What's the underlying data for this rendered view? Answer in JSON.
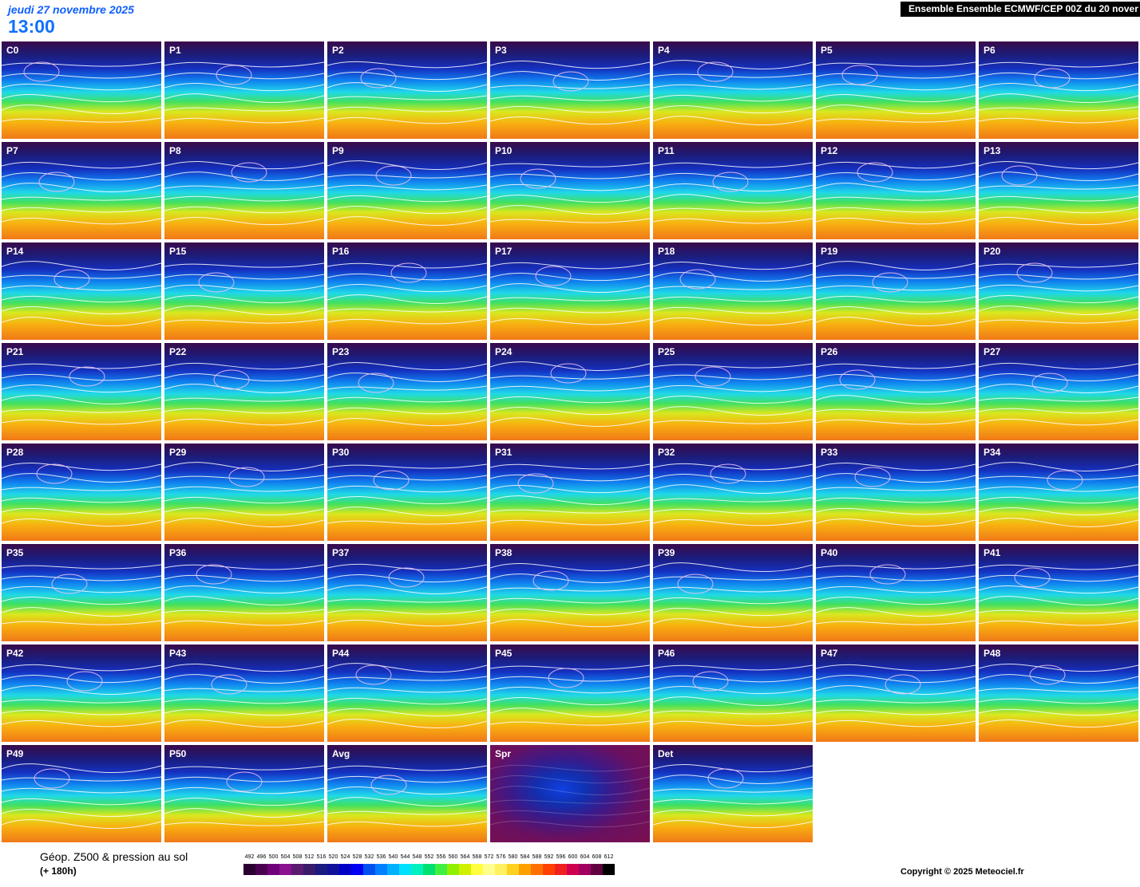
{
  "header": {
    "date": "jeudi 27 novembre 2025",
    "time": "13:00",
    "title": "Ensemble Ensemble ECMWF/CEP 00Z du 20 nover"
  },
  "panels": [
    "C0",
    "P1",
    "P2",
    "P3",
    "P4",
    "P5",
    "P6",
    "P7",
    "P8",
    "P9",
    "P10",
    "P11",
    "P12",
    "P13",
    "P14",
    "P15",
    "P16",
    "P17",
    "P18",
    "P19",
    "P20",
    "P21",
    "P22",
    "P23",
    "P24",
    "P25",
    "P26",
    "P27",
    "P28",
    "P29",
    "P30",
    "P31",
    "P32",
    "P33",
    "P34",
    "P35",
    "P36",
    "P37",
    "P38",
    "P39",
    "P40",
    "P41",
    "P42",
    "P43",
    "P44",
    "P45",
    "P46",
    "P47",
    "P48",
    "P49",
    "P50",
    "Avg",
    "Spr",
    "Det"
  ],
  "legend": {
    "title": "Géop. Z500 & pression au sol",
    "subtitle": "(+ 180h)",
    "scale": [
      492,
      496,
      500,
      504,
      508,
      512,
      516,
      520,
      524,
      528,
      532,
      536,
      540,
      544,
      548,
      552,
      556,
      560,
      564,
      568,
      572,
      576,
      580,
      584,
      588,
      592,
      596,
      600,
      604,
      608,
      612
    ],
    "colors": [
      "#2a0030",
      "#4a0050",
      "#70007a",
      "#8a1090",
      "#5a1a70",
      "#3a1a6a",
      "#1a1a80",
      "#10109a",
      "#0000c8",
      "#0000f0",
      "#0050f0",
      "#0080ff",
      "#00b0ff",
      "#00e0ff",
      "#00f0c0",
      "#00e070",
      "#40f040",
      "#90f000",
      "#d0f000",
      "#ffff40",
      "#ffff90",
      "#fff060",
      "#ffd020",
      "#ffa000",
      "#ff7000",
      "#ff4000",
      "#f02020",
      "#d00050",
      "#a00060",
      "#600040",
      "#000000"
    ]
  },
  "footer": {
    "copyright": "Copyright © 2025 Meteociel.fr"
  }
}
